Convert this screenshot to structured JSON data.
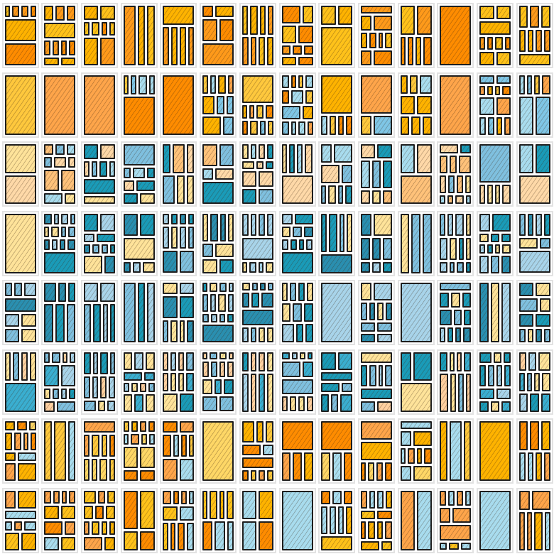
{
  "grid": {
    "columns": 14,
    "rows": 8,
    "seed": 7
  },
  "row_palettes": [
    [
      "#ff8c00",
      "#ffb300",
      "#ffc21a",
      "#ff9a1a"
    ],
    [
      "#ffb300",
      "#ff8c00",
      "#ffa54a",
      "#a8dcee",
      "#7fc6e6",
      "#ffc83d"
    ],
    [
      "#ffd9a8",
      "#ffe39a",
      "#1a9bb8",
      "#a8dcee",
      "#7fc0df",
      "#ffc27a"
    ],
    [
      "#1a9bb8",
      "#7fc0df",
      "#a8d4ea",
      "#2a8fb0",
      "#ffe39a"
    ],
    [
      "#1a9bb8",
      "#7fc0df",
      "#a8d4ea",
      "#2a8fb0",
      "#ffe39a"
    ],
    [
      "#7fc0df",
      "#a8d4ea",
      "#1a9bb8",
      "#ffe39a",
      "#ffd0a0",
      "#3aaed0"
    ],
    [
      "#ffc83d",
      "#ffb300",
      "#ffa54a",
      "#a8dcee",
      "#ff8c00",
      "#ffd766"
    ],
    [
      "#ff8c00",
      "#ffb300",
      "#ffc21a",
      "#ffa54a",
      "#a8dcee"
    ]
  ]
}
